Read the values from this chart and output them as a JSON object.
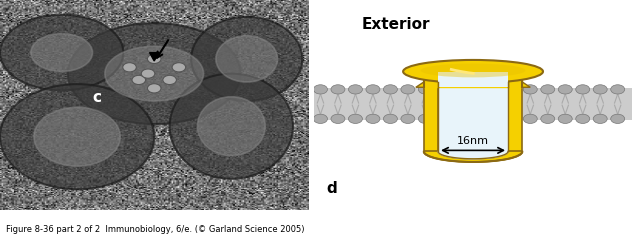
{
  "fig_width": 6.32,
  "fig_height": 2.39,
  "dpi": 100,
  "left_panel_bg": "#888888",
  "right_panel_bg": "#dff0f7",
  "border_color": "#333333",
  "label_c": "c",
  "label_d": "d",
  "exterior_label": "Exterior",
  "dim_label": "16nm",
  "caption": "Figure 8-36 part 2 of 2  Immunobiology, 6/e. (© Garland Science 2005)",
  "yellow_color": "#f5d000",
  "yellow_dark": "#c8a800",
  "yellow_outline": "#8B6914",
  "membrane_top_color": "#b0b0b0",
  "membrane_mid_color": "#d8d8d8",
  "membrane_bead_color": "#909090",
  "interior_bg": "#e8f4fa",
  "arrow_color": "#222222"
}
